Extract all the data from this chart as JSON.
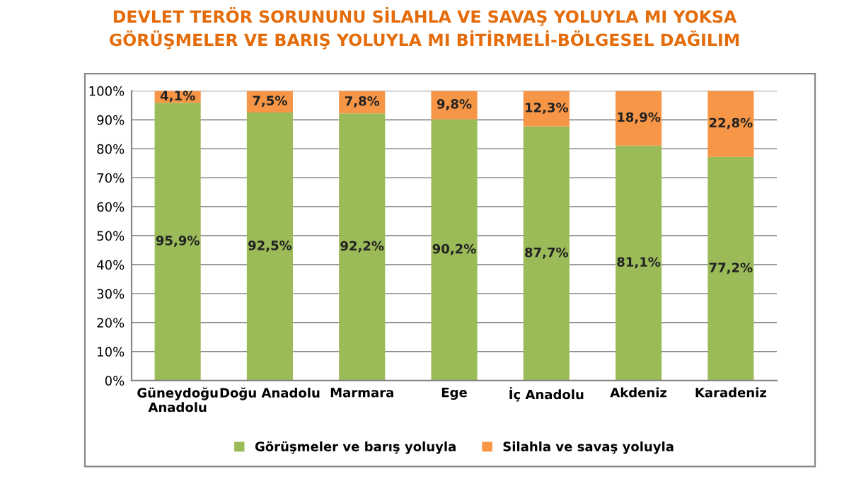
{
  "chart_data": {
    "type": "bar",
    "stacked": true,
    "title": "DEVLET TERÖR SORUNUNU SİLAHLA VE SAVAŞ YOLUYLA MI YOKSA\nGÖRÜŞMELER VE BARIŞ YOLUYLA MI BİTİRMELİ-BÖLGESEL DAĞILIM",
    "categories": [
      "Güneydoğu\nAnadolu",
      "Doğu Anadolu",
      "Marmara",
      "Ege",
      "İç Anadolu",
      "Akdeniz",
      "Karadeniz"
    ],
    "series": [
      {
        "name": "Görüşmeler ve barış yoluyla",
        "color": "#9bbb59",
        "values": [
          95.9,
          92.5,
          92.2,
          90.2,
          87.7,
          81.1,
          77.2
        ],
        "value_labels": [
          "95,9%",
          "92,5%",
          "92,2%",
          "90,2%",
          "87,7%",
          "81,1%",
          "77,2%"
        ]
      },
      {
        "name": "Silahla ve savaş yoluyla",
        "color": "#f79646",
        "values": [
          4.1,
          7.5,
          7.8,
          9.8,
          12.3,
          18.9,
          22.8
        ],
        "value_labels": [
          "4,1%",
          "7,5%",
          "7,8%",
          "9,8%",
          "12,3%",
          "18,9%",
          "22,8%"
        ]
      }
    ],
    "ylim": [
      0,
      100
    ],
    "yticks": [
      {
        "value": 0,
        "label": "0%"
      },
      {
        "value": 10,
        "label": "10%"
      },
      {
        "value": 20,
        "label": "20%"
      },
      {
        "value": 30,
        "label": "30%"
      },
      {
        "value": 40,
        "label": "40%"
      },
      {
        "value": 50,
        "label": "50%"
      },
      {
        "value": 60,
        "label": "60%"
      },
      {
        "value": 70,
        "label": "70%"
      },
      {
        "value": 80,
        "label": "80%"
      },
      {
        "value": 90,
        "label": "90%"
      },
      {
        "value": 100,
        "label": "100%"
      }
    ],
    "grid": "y",
    "legend": "bottom"
  }
}
